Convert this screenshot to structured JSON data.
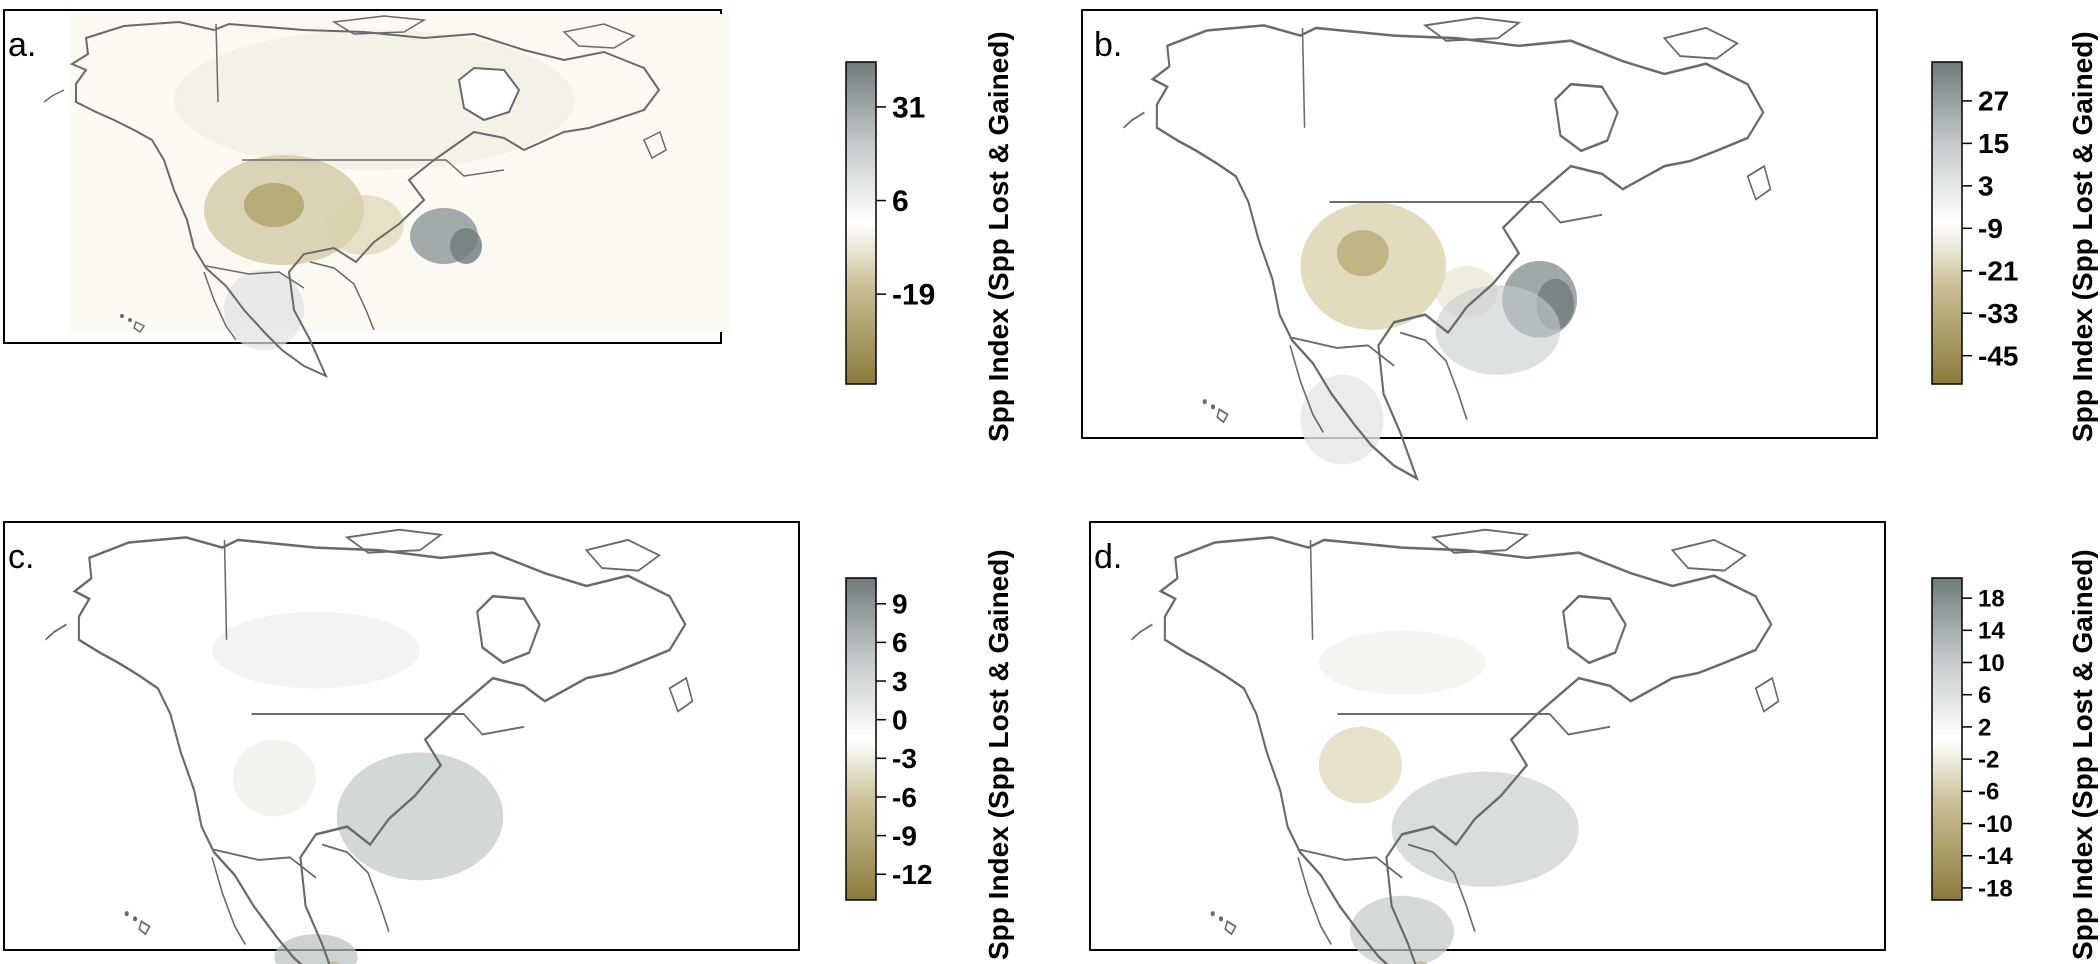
{
  "figure": {
    "panels": [
      {
        "id": "a",
        "label": "a.",
        "legend": {
          "title": "Spp Index (Spp Lost & Gained)",
          "ticks": [
            "31",
            "6",
            "-19"
          ],
          "range": [
            -43,
            43
          ],
          "tick_values": [
            31,
            6,
            -19
          ]
        },
        "background": "#fbf9f2"
      },
      {
        "id": "b",
        "label": "b.",
        "legend": {
          "title": "Spp Index (Spp Lost & Gained)",
          "ticks": [
            "27",
            "15",
            "3",
            "-9",
            "-21",
            "-33",
            "-45"
          ],
          "range": [
            -53,
            38
          ],
          "tick_values": [
            27,
            15,
            3,
            -9,
            -21,
            -33,
            -45
          ]
        },
        "background": "#ffffff"
      },
      {
        "id": "c",
        "label": "c.",
        "legend": {
          "title": "Spp Index (Spp Lost & Gained)",
          "ticks": [
            "9",
            "6",
            "3",
            "0",
            "-3",
            "-6",
            "-9",
            "-12"
          ],
          "range": [
            -14,
            11
          ],
          "tick_values": [
            9,
            6,
            3,
            0,
            -3,
            -6,
            -9,
            -12
          ]
        },
        "background": "#ffffff"
      },
      {
        "id": "d",
        "label": "d.",
        "legend": {
          "title": "Spp Index (Spp Lost & Gained)",
          "ticks": [
            "18",
            "14",
            "10",
            "6",
            "2",
            "-2",
            "-6",
            "-10",
            "-14",
            "-18"
          ],
          "range": [
            -19.5,
            20.5
          ],
          "tick_values": [
            18,
            14,
            10,
            6,
            2,
            -2,
            -6,
            -10,
            -14,
            -18
          ]
        },
        "background": "#ffffff"
      }
    ]
  },
  "colors": {
    "gain": "#6f7a7c",
    "neutral": "#ffffff",
    "loss": "#8a7a3a",
    "outline": "#6a6a6a",
    "frame": "#000000"
  }
}
